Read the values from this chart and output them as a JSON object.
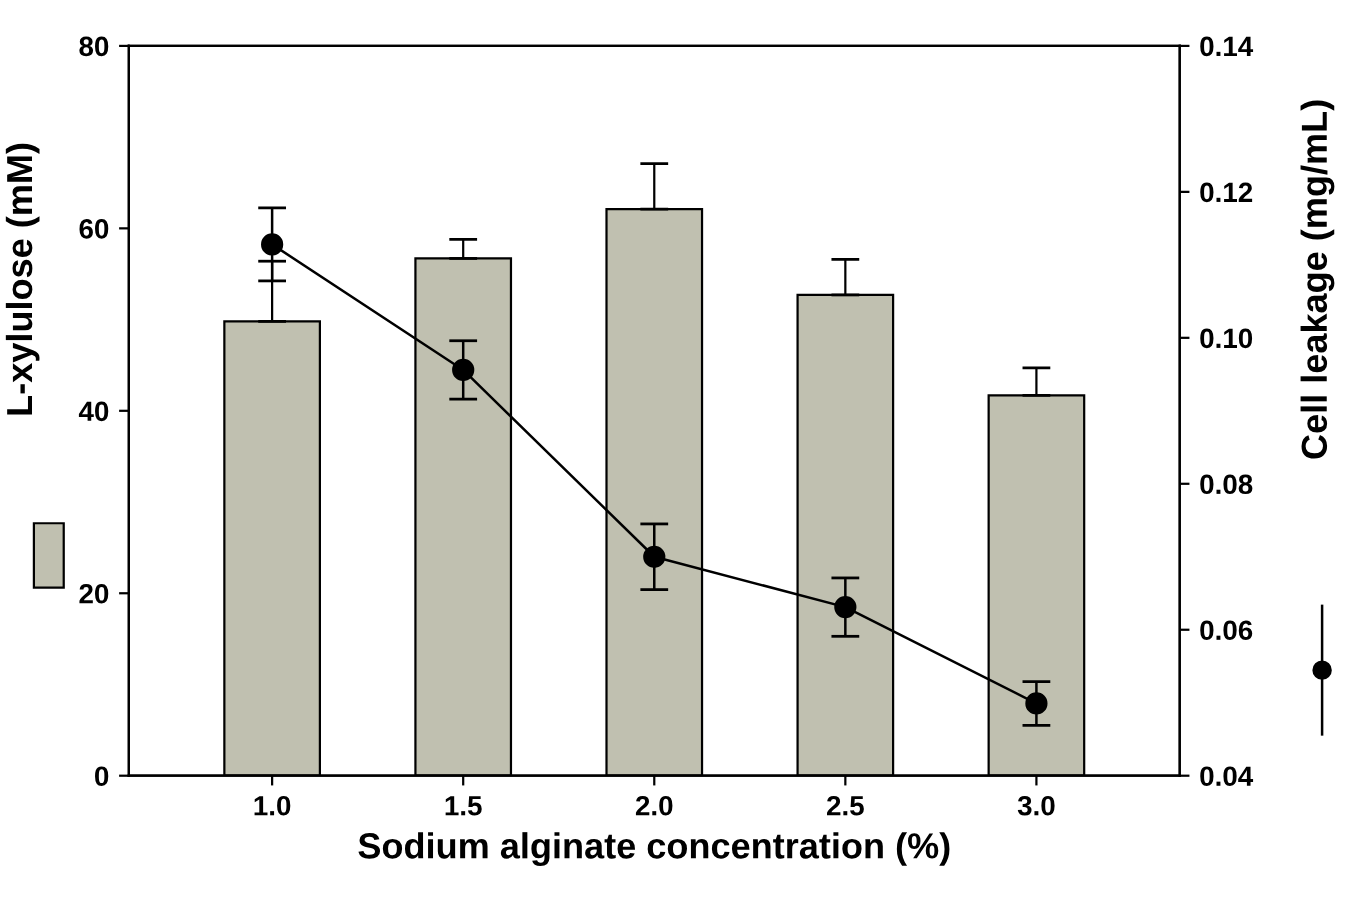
{
  "chart_data": {
    "type": "bar",
    "xlabel": "Sodium alginate concentration (%)",
    "ylabel": "L-xylulose (mM)",
    "y2label": "Cell leakage (mg/mL)",
    "categories": [
      "1.0",
      "1.5",
      "2.0",
      "2.5",
      "3.0"
    ],
    "ylim": [
      0,
      80
    ],
    "yticks": [
      0,
      20,
      40,
      60,
      80
    ],
    "y2lim": [
      0.04,
      0.14
    ],
    "y2ticks": [
      0.04,
      0.06,
      0.08,
      {
        "value": 0.1,
        "label": "0.10"
      },
      0.12,
      0.14
    ],
    "grid": false,
    "legend": false,
    "series": [
      {
        "color": "#c0c0b0",
        "values": [
          49.8,
          56.7,
          62.1,
          52.7,
          41.7
        ],
        "errors": [
          [
            49.8,
            56.4
          ],
          [
            56.7,
            58.8
          ],
          [
            62.1,
            67.1
          ],
          [
            52.7,
            56.6
          ],
          [
            41.7,
            44.7
          ]
        ]
      },
      {
        "type": "line",
        "axis": "y2",
        "color": "#000000",
        "marker": "circle",
        "values": [
          0.1128,
          0.0956,
          0.07,
          0.0631,
          0.0499
        ],
        "errors": [
          0.005,
          0.004,
          0.0045,
          0.004,
          0.003
        ]
      }
    ]
  }
}
